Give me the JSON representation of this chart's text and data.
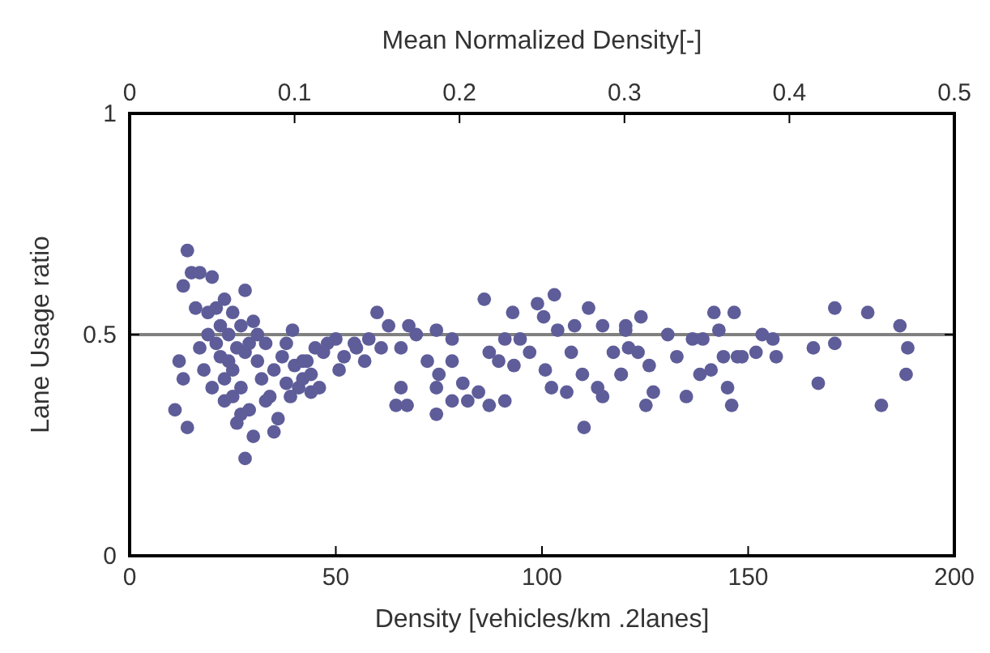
{
  "chart_data": {
    "type": "scatter",
    "xlabel": "Density [vehicles/km .2lanes]",
    "ylabel": "Lane Usage ratio",
    "x2label": "Mean Normalized Density[-]",
    "xlim": [
      0,
      200
    ],
    "xticks": [
      0,
      50,
      100,
      150,
      200
    ],
    "ylim": [
      0,
      1
    ],
    "yticks": [
      0,
      0.5,
      1
    ],
    "x2lim": [
      0,
      0.5
    ],
    "x2ticks": [
      0,
      0.1,
      0.2,
      0.3,
      0.4,
      0.5
    ],
    "grid": false,
    "marker": "circle",
    "ref_lines": [
      {
        "axis": "y",
        "value": 0.5,
        "color": "#808080"
      }
    ],
    "series": [
      {
        "color": "#5e5d99",
        "x": [
          14,
          15,
          17,
          13,
          20,
          28,
          23,
          16,
          19,
          22,
          25,
          30,
          12,
          13,
          11,
          14,
          17,
          18,
          20,
          21,
          22,
          23,
          24,
          25,
          26,
          27,
          28,
          29,
          30,
          28,
          31,
          32,
          33,
          34,
          35,
          36,
          37,
          38,
          39,
          40,
          41,
          42,
          43,
          44,
          45,
          19,
          21,
          24,
          26,
          27,
          29,
          31,
          23,
          25,
          27,
          33,
          35,
          38,
          47,
          50,
          52,
          55,
          57,
          58,
          44,
          46,
          39.5,
          42,
          50.8,
          48,
          54.5,
          60,
          62.8,
          61,
          65.8,
          67.7,
          69.5,
          65.8,
          64.6,
          67.3,
          74.4,
          72.2,
          75,
          74.4,
          74.4,
          78.2,
          78.2,
          80.8,
          78.2,
          82,
          84.6,
          87.2,
          91,
          86,
          92.9,
          87.2,
          89.5,
          93.2,
          91,
          94.7,
          97,
          98.9,
          100.4,
          103,
          103.8,
          100.8,
          102.3,
          106,
          107.9,
          107.1,
          109.8,
          110.2,
          111.3,
          113.5,
          114.7,
          114.7,
          117.3,
          119.2,
          120.3,
          120.3,
          124,
          121,
          123.3,
          119.2,
          126,
          127,
          125.2,
          130.5,
          132.7,
          135,
          136.5,
          139,
          138.3,
          141,
          141.7,
          146.6,
          142.9,
          144,
          147.4,
          145,
          146,
          148.5,
          153.4,
          156,
          151.9,
          156.8,
          165.8,
          171,
          171,
          167,
          179,
          182.3,
          186.8,
          188.7,
          188.3
        ],
        "values": [
          0.69,
          0.64,
          0.64,
          0.61,
          0.63,
          0.6,
          0.58,
          0.56,
          0.55,
          0.52,
          0.55,
          0.53,
          0.44,
          0.4,
          0.33,
          0.29,
          0.47,
          0.42,
          0.38,
          0.48,
          0.45,
          0.35,
          0.5,
          0.42,
          0.3,
          0.38,
          0.46,
          0.33,
          0.27,
          0.22,
          0.44,
          0.4,
          0.48,
          0.36,
          0.42,
          0.31,
          0.45,
          0.39,
          0.36,
          0.43,
          0.38,
          0.4,
          0.44,
          0.37,
          0.47,
          0.5,
          0.56,
          0.44,
          0.47,
          0.52,
          0.48,
          0.5,
          0.4,
          0.36,
          0.32,
          0.35,
          0.28,
          0.48,
          0.46,
          0.49,
          0.45,
          0.47,
          0.44,
          0.49,
          0.41,
          0.38,
          0.51,
          0.44,
          0.42,
          0.48,
          0.48,
          0.55,
          0.52,
          0.47,
          0.47,
          0.52,
          0.5,
          0.38,
          0.34,
          0.34,
          0.51,
          0.44,
          0.41,
          0.38,
          0.32,
          0.49,
          0.44,
          0.39,
          0.35,
          0.35,
          0.37,
          0.34,
          0.35,
          0.58,
          0.55,
          0.46,
          0.44,
          0.43,
          0.49,
          0.49,
          0.46,
          0.57,
          0.54,
          0.59,
          0.51,
          0.42,
          0.38,
          0.37,
          0.52,
          0.46,
          0.41,
          0.29,
          0.56,
          0.38,
          0.36,
          0.52,
          0.46,
          0.41,
          0.51,
          0.52,
          0.54,
          0.47,
          0.46,
          0.41,
          0.43,
          0.37,
          0.34,
          0.5,
          0.45,
          0.36,
          0.49,
          0.49,
          0.41,
          0.42,
          0.55,
          0.55,
          0.51,
          0.45,
          0.45,
          0.38,
          0.34,
          0.45,
          0.5,
          0.49,
          0.46,
          0.45,
          0.47,
          0.56,
          0.48,
          0.39,
          0.55,
          0.34,
          0.52,
          0.47,
          0.41
        ]
      }
    ]
  }
}
